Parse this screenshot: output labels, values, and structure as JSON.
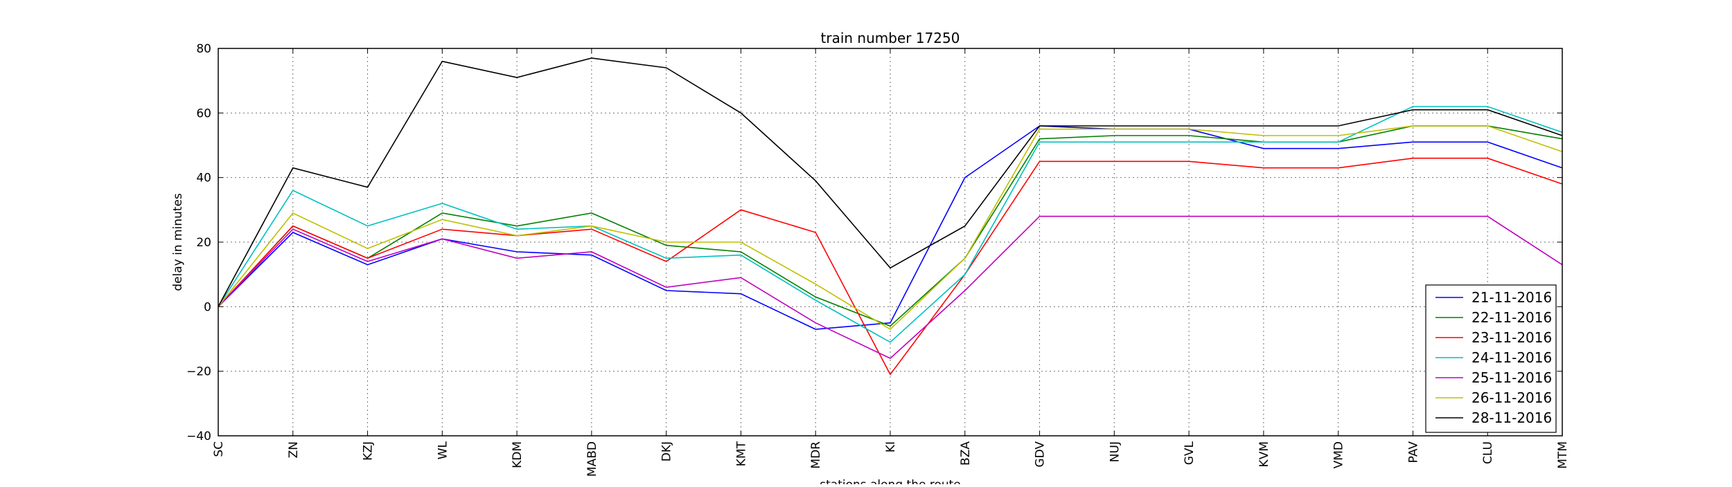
{
  "chart_data": {
    "type": "line",
    "title": "train number 17250",
    "xlabel": "stations along the route",
    "ylabel": "delay in minutes",
    "ylim": [
      -40,
      80
    ],
    "yticks": [
      -40,
      -20,
      0,
      20,
      40,
      60,
      80
    ],
    "ytick_labels": [
      "−40",
      "−20",
      "0",
      "20",
      "40",
      "60",
      "80"
    ],
    "grid": true,
    "legend_position": "lower-right",
    "categories": [
      "SC",
      "ZN",
      "KZJ",
      "WL",
      "KDM",
      "MABD",
      "DKJ",
      "KMT",
      "MDR",
      "KI",
      "BZA",
      "GDV",
      "NUJ",
      "GVL",
      "KVM",
      "VMD",
      "PAV",
      "CLU",
      "MTM"
    ],
    "series": [
      {
        "name": "21-11-2016",
        "color": "#0000ff",
        "values": [
          0,
          23,
          13,
          21,
          17,
          16,
          5,
          4,
          -7,
          -5,
          40,
          56,
          55,
          55,
          49,
          49,
          51,
          51,
          43
        ]
      },
      {
        "name": "22-11-2016",
        "color": "#008000",
        "values": [
          0,
          25,
          15,
          29,
          25,
          29,
          19,
          17,
          3,
          -6,
          15,
          52,
          53,
          53,
          51,
          51,
          56,
          56,
          52
        ]
      },
      {
        "name": "23-11-2016",
        "color": "#ff0000",
        "values": [
          0,
          25,
          15,
          24,
          22,
          24,
          14,
          30,
          23,
          -21,
          10,
          45,
          45,
          45,
          43,
          43,
          46,
          46,
          38
        ]
      },
      {
        "name": "24-11-2016",
        "color": "#00bfbf",
        "values": [
          0,
          36,
          25,
          32,
          24,
          25,
          15,
          16,
          2,
          -11,
          10,
          51,
          51,
          51,
          51,
          51,
          62,
          62,
          54
        ]
      },
      {
        "name": "25-11-2016",
        "color": "#bf00bf",
        "values": [
          0,
          24,
          14,
          21,
          15,
          17,
          6,
          9,
          -5,
          -16,
          5,
          28,
          28,
          28,
          28,
          28,
          28,
          28,
          13
        ]
      },
      {
        "name": "26-11-2016",
        "color": "#bfbf00",
        "values": [
          0,
          29,
          18,
          27,
          22,
          25,
          20,
          20,
          7,
          -7,
          15,
          55,
          55,
          55,
          53,
          53,
          56,
          56,
          48
        ]
      },
      {
        "name": "28-11-2016",
        "color": "#000000",
        "values": [
          0,
          43,
          37,
          76,
          71,
          77,
          74,
          60,
          39,
          12,
          25,
          56,
          56,
          56,
          56,
          56,
          61,
          61,
          53
        ]
      }
    ]
  }
}
